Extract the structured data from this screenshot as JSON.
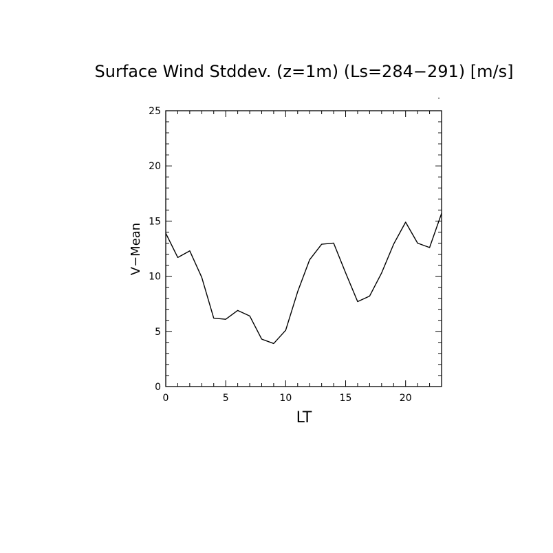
{
  "chart_data": {
    "type": "line",
    "title": "Surface Wind Stddev. (z=1m) (Ls=284−291) [m/s]",
    "xlabel": "LT",
    "ylabel": "V−Mean",
    "xlim": [
      0,
      23
    ],
    "ylim": [
      0,
      25
    ],
    "x_ticks": [
      0,
      5,
      10,
      15,
      20
    ],
    "y_ticks": [
      0,
      5,
      10,
      15,
      20,
      25
    ],
    "grid": false,
    "line_color": "#000000",
    "x": [
      0,
      1,
      2,
      3,
      4,
      5,
      6,
      7,
      8,
      9,
      10,
      11,
      12,
      13,
      14,
      15,
      16,
      17,
      18,
      19,
      20,
      21,
      22,
      23
    ],
    "series": [
      {
        "values": [
          13.9,
          11.7,
          12.3,
          9.9,
          6.2,
          6.1,
          6.9,
          6.4,
          4.3,
          3.9,
          5.1,
          8.6,
          11.5,
          12.9,
          13.0,
          10.3,
          7.7,
          8.2,
          10.3,
          12.9,
          14.9,
          13.0,
          12.6,
          15.7
        ]
      }
    ]
  }
}
